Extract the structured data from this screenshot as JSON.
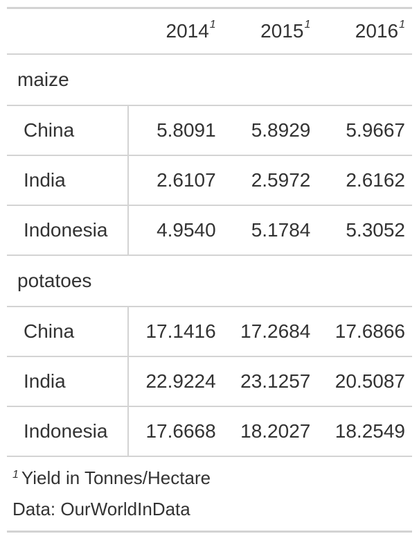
{
  "chart_data": {
    "type": "table",
    "columns": [
      "2014",
      "2015",
      "2016"
    ],
    "column_footnote_mark": "1",
    "groups": [
      {
        "name": "maize",
        "rows": [
          {
            "label": "China",
            "values": [
              "5.8091",
              "5.8929",
              "5.9667"
            ]
          },
          {
            "label": "India",
            "values": [
              "2.6107",
              "2.5972",
              "2.6162"
            ]
          },
          {
            "label": "Indonesia",
            "values": [
              "4.9540",
              "5.1784",
              "5.3052"
            ]
          }
        ]
      },
      {
        "name": "potatoes",
        "rows": [
          {
            "label": "China",
            "values": [
              "17.1416",
              "17.2684",
              "17.6866"
            ]
          },
          {
            "label": "India",
            "values": [
              "22.9224",
              "23.1257",
              "20.5087"
            ]
          },
          {
            "label": "Indonesia",
            "values": [
              "17.6668",
              "18.2027",
              "18.2549"
            ]
          }
        ]
      }
    ],
    "footnote": {
      "mark": "1",
      "text": "Yield in Tonnes/Hectare"
    },
    "source_note": "Data: OurWorldInData"
  },
  "colors": {
    "text": "#333333",
    "rule": "#d3d3d3",
    "background": "#ffffff"
  }
}
